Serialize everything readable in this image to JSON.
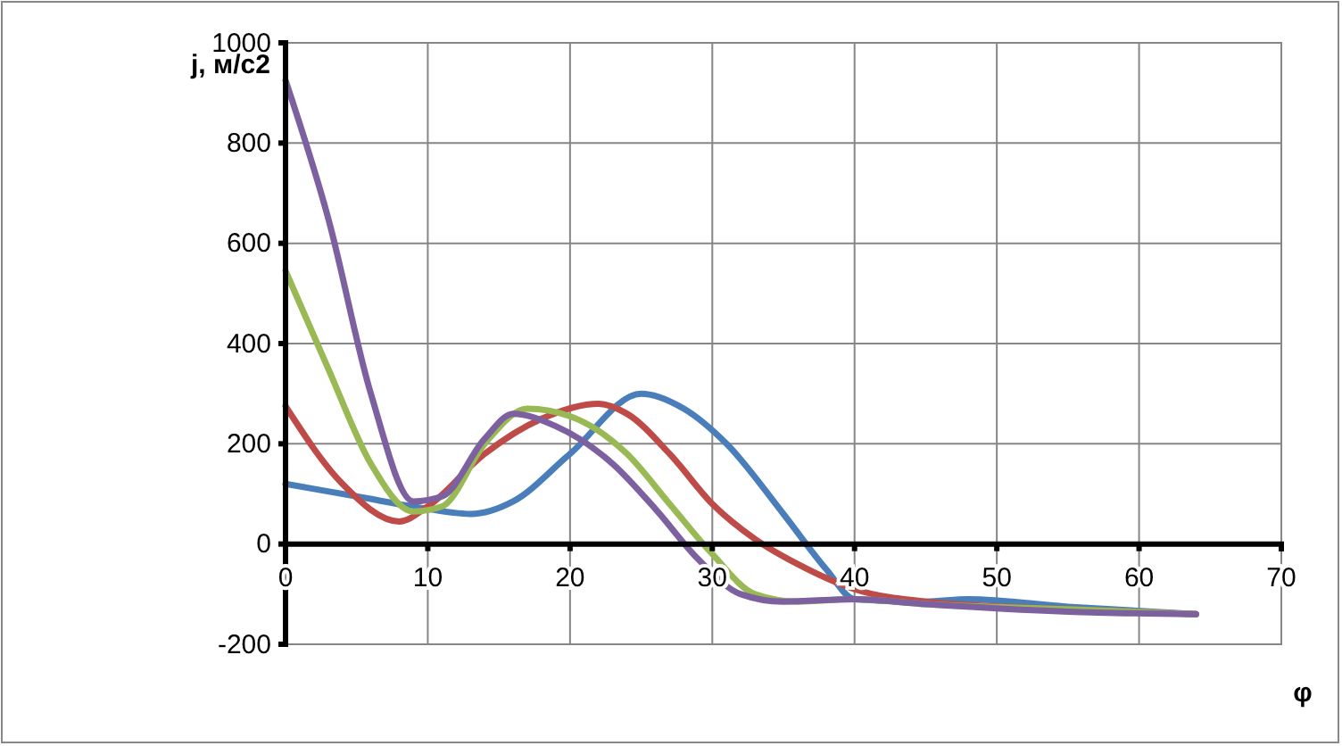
{
  "chart_data": {
    "type": "line",
    "xlabel": "φ",
    "ylabel": "j, м/с2",
    "xlim": [
      0,
      70
    ],
    "xticks": [
      0,
      10,
      20,
      30,
      40,
      50,
      60,
      70
    ],
    "ylim": [
      -200,
      1000
    ],
    "yticks": [
      -200,
      0,
      200,
      400,
      600,
      800,
      1000
    ],
    "grid": true,
    "marker": "none",
    "line_style": "solid",
    "series": [
      {
        "color": "#4a7ebb",
        "x": [
          0,
          5,
          10,
          13,
          16,
          20,
          25,
          28,
          31,
          35,
          38,
          40,
          45,
          48,
          55,
          64
        ],
        "values": [
          120,
          95,
          70,
          60,
          85,
          180,
          300,
          270,
          200,
          60,
          -50,
          -110,
          -115,
          -110,
          -125,
          -140
        ]
      },
      {
        "color": "#be4b48",
        "x": [
          0,
          4,
          8,
          10,
          14,
          18,
          22,
          24,
          27,
          30,
          33,
          36,
          40,
          45,
          55,
          64
        ],
        "values": [
          275,
          120,
          45,
          75,
          180,
          250,
          280,
          260,
          180,
          80,
          10,
          -40,
          -90,
          -115,
          -130,
          -140
        ]
      },
      {
        "color": "#98b954",
        "x": [
          0,
          3,
          6,
          9,
          11,
          14,
          17,
          20,
          24,
          27,
          30,
          33,
          36,
          40,
          45,
          55,
          64
        ],
        "values": [
          545,
          350,
          160,
          65,
          75,
          200,
          270,
          255,
          180,
          80,
          -20,
          -100,
          -115,
          -110,
          -120,
          -130,
          -140
        ]
      },
      {
        "color": "#7d60a0",
        "x": [
          0,
          3,
          6,
          9,
          11,
          14,
          16,
          19,
          23,
          26,
          29,
          32,
          35,
          40,
          45,
          55,
          64
        ],
        "values": [
          925,
          650,
          300,
          85,
          95,
          210,
          260,
          235,
          160,
          70,
          -30,
          -100,
          -115,
          -110,
          -120,
          -135,
          -140
        ]
      }
    ]
  }
}
